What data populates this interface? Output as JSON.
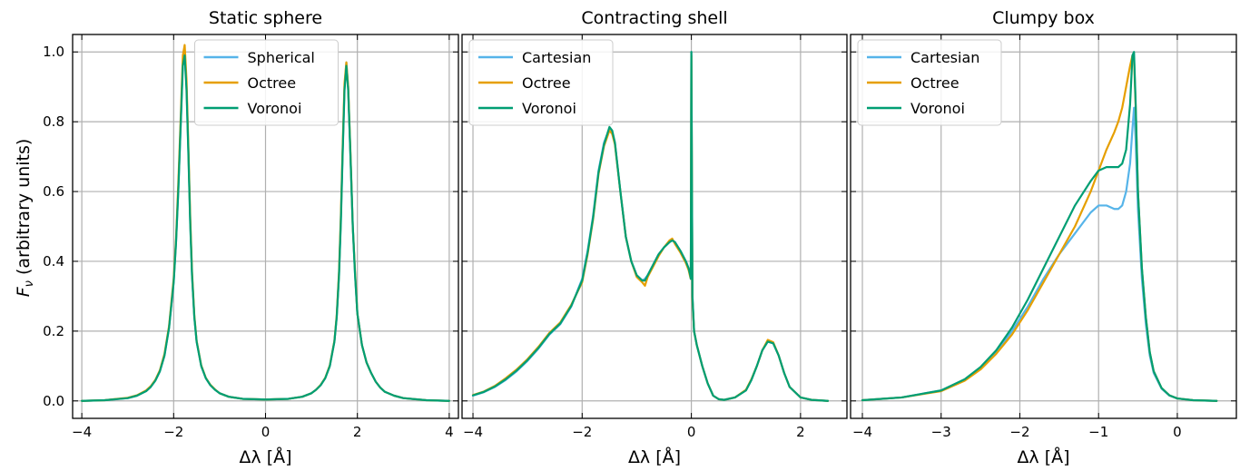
{
  "figure": {
    "ylabel_main": "F",
    "ylabel_sub": "ν",
    "ylabel_rest": " (arbitrary units)",
    "xlabel": "Δλ [Å]"
  },
  "colors": {
    "blue": "#56B4E9",
    "orange": "#E69F00",
    "green": "#009E73"
  },
  "chart_data": [
    {
      "type": "line",
      "title": "Static sphere",
      "xlabel": "Δλ [Å]",
      "ylabel": "Fν (arbitrary units)",
      "xlim": [
        -4.2,
        4.2
      ],
      "ylim": [
        -0.05,
        1.05
      ],
      "xticks": [
        -4,
        -2,
        0,
        2,
        4
      ],
      "xtick_labels": [
        "−4",
        "−2",
        "0",
        "2",
        "4"
      ],
      "yticks": [
        0.0,
        0.2,
        0.4,
        0.6,
        0.8,
        1.0
      ],
      "ytick_labels": [
        "0.0",
        "0.2",
        "0.4",
        "0.6",
        "0.8",
        "1.0"
      ],
      "grid": true,
      "legend": "top-center",
      "series": [
        {
          "name": "Spherical",
          "color": "#56B4E9",
          "x": [
            -4,
            -3.5,
            -3,
            -2.8,
            -2.6,
            -2.5,
            -2.4,
            -2.3,
            -2.2,
            -2.1,
            -2.0,
            -1.95,
            -1.9,
            -1.85,
            -1.8,
            -1.76,
            -1.72,
            -1.68,
            -1.64,
            -1.6,
            -1.55,
            -1.5,
            -1.4,
            -1.3,
            -1.2,
            -1.1,
            -1.0,
            -0.8,
            -0.5,
            0,
            0.5,
            0.8,
            1.0,
            1.1,
            1.2,
            1.3,
            1.4,
            1.5,
            1.55,
            1.6,
            1.64,
            1.68,
            1.72,
            1.76,
            1.8,
            1.85,
            1.9,
            1.95,
            2.0,
            2.1,
            2.2,
            2.3,
            2.4,
            2.5,
            2.6,
            2.8,
            3.0,
            3.5,
            4.0
          ],
          "y": [
            0.0,
            0.002,
            0.008,
            0.015,
            0.028,
            0.04,
            0.058,
            0.085,
            0.13,
            0.21,
            0.34,
            0.45,
            0.6,
            0.78,
            0.97,
            1.0,
            0.9,
            0.72,
            0.52,
            0.36,
            0.24,
            0.17,
            0.1,
            0.065,
            0.045,
            0.032,
            0.022,
            0.012,
            0.006,
            0.004,
            0.006,
            0.012,
            0.022,
            0.032,
            0.045,
            0.065,
            0.1,
            0.17,
            0.24,
            0.36,
            0.52,
            0.72,
            0.9,
            0.97,
            0.9,
            0.7,
            0.5,
            0.36,
            0.25,
            0.16,
            0.11,
            0.08,
            0.055,
            0.038,
            0.026,
            0.015,
            0.008,
            0.002,
            0.0
          ]
        },
        {
          "name": "Octree",
          "color": "#E69F00",
          "x": [
            -4,
            -3.5,
            -3,
            -2.8,
            -2.6,
            -2.5,
            -2.4,
            -2.3,
            -2.2,
            -2.1,
            -2.0,
            -1.95,
            -1.9,
            -1.85,
            -1.8,
            -1.76,
            -1.72,
            -1.68,
            -1.64,
            -1.6,
            -1.55,
            -1.5,
            -1.4,
            -1.3,
            -1.2,
            -1.1,
            -1.0,
            -0.8,
            -0.5,
            0,
            0.5,
            0.8,
            1.0,
            1.1,
            1.2,
            1.3,
            1.4,
            1.5,
            1.55,
            1.6,
            1.64,
            1.68,
            1.72,
            1.76,
            1.8,
            1.85,
            1.9,
            1.95,
            2.0,
            2.1,
            2.2,
            2.3,
            2.4,
            2.5,
            2.6,
            2.8,
            3.0,
            3.5,
            4.0
          ],
          "y": [
            0.0,
            0.002,
            0.009,
            0.016,
            0.03,
            0.042,
            0.06,
            0.088,
            0.135,
            0.215,
            0.35,
            0.46,
            0.62,
            0.8,
            0.99,
            1.02,
            0.92,
            0.73,
            0.53,
            0.37,
            0.245,
            0.172,
            0.102,
            0.066,
            0.046,
            0.033,
            0.022,
            0.012,
            0.006,
            0.004,
            0.006,
            0.012,
            0.022,
            0.032,
            0.046,
            0.066,
            0.102,
            0.172,
            0.245,
            0.37,
            0.53,
            0.73,
            0.91,
            0.97,
            0.9,
            0.71,
            0.5,
            0.37,
            0.25,
            0.16,
            0.11,
            0.08,
            0.055,
            0.038,
            0.026,
            0.015,
            0.008,
            0.002,
            0.0
          ]
        },
        {
          "name": "Voronoi",
          "color": "#009E73",
          "x": [
            -4,
            -3.5,
            -3,
            -2.8,
            -2.6,
            -2.5,
            -2.4,
            -2.3,
            -2.2,
            -2.1,
            -2.0,
            -1.95,
            -1.9,
            -1.85,
            -1.8,
            -1.76,
            -1.72,
            -1.68,
            -1.64,
            -1.6,
            -1.55,
            -1.5,
            -1.4,
            -1.3,
            -1.2,
            -1.1,
            -1.0,
            -0.8,
            -0.5,
            0,
            0.5,
            0.8,
            1.0,
            1.1,
            1.2,
            1.3,
            1.4,
            1.5,
            1.55,
            1.6,
            1.64,
            1.68,
            1.72,
            1.76,
            1.8,
            1.85,
            1.9,
            1.95,
            2.0,
            2.1,
            2.2,
            2.3,
            2.4,
            2.5,
            2.6,
            2.8,
            3.0,
            3.5,
            4.0
          ],
          "y": [
            0.0,
            0.002,
            0.008,
            0.015,
            0.028,
            0.04,
            0.058,
            0.085,
            0.13,
            0.21,
            0.34,
            0.45,
            0.6,
            0.78,
            0.96,
            0.99,
            0.89,
            0.71,
            0.51,
            0.36,
            0.24,
            0.17,
            0.1,
            0.065,
            0.045,
            0.032,
            0.022,
            0.012,
            0.006,
            0.004,
            0.006,
            0.012,
            0.022,
            0.032,
            0.045,
            0.065,
            0.1,
            0.17,
            0.24,
            0.36,
            0.51,
            0.71,
            0.89,
            0.96,
            0.89,
            0.7,
            0.5,
            0.36,
            0.25,
            0.16,
            0.11,
            0.08,
            0.055,
            0.038,
            0.026,
            0.015,
            0.008,
            0.002,
            0.0
          ]
        }
      ]
    },
    {
      "type": "line",
      "title": "Contracting shell",
      "xlabel": "Δλ [Å]",
      "ylabel": "",
      "xlim": [
        -4.2,
        2.85
      ],
      "ylim": [
        -0.05,
        1.05
      ],
      "xticks": [
        -4,
        -2,
        0,
        2
      ],
      "xtick_labels": [
        "−4",
        "−2",
        "0",
        "2"
      ],
      "yticks": [
        0.0,
        0.2,
        0.4,
        0.6,
        0.8,
        1.0
      ],
      "grid": true,
      "legend": "top-left",
      "series": [
        {
          "name": "Cartesian",
          "color": "#56B4E9",
          "x": [
            -4,
            -3.8,
            -3.6,
            -3.4,
            -3.2,
            -3.0,
            -2.8,
            -2.6,
            -2.4,
            -2.2,
            -2.0,
            -1.9,
            -1.8,
            -1.7,
            -1.6,
            -1.5,
            -1.45,
            -1.4,
            -1.3,
            -1.2,
            -1.1,
            -1.0,
            -0.9,
            -0.85,
            -0.8,
            -0.7,
            -0.6,
            -0.5,
            -0.4,
            -0.35,
            -0.3,
            -0.2,
            -0.1,
            -0.05,
            -0.02,
            -0.01,
            0.0,
            0.02,
            0.05,
            0.1,
            0.2,
            0.3,
            0.4,
            0.5,
            0.6,
            0.8,
            1.0,
            1.1,
            1.2,
            1.3,
            1.4,
            1.5,
            1.6,
            1.7,
            1.8,
            2.0,
            2.2,
            2.5
          ],
          "y": [
            0.015,
            0.025,
            0.04,
            0.06,
            0.085,
            0.115,
            0.15,
            0.19,
            0.22,
            0.27,
            0.35,
            0.43,
            0.53,
            0.66,
            0.74,
            0.78,
            0.77,
            0.74,
            0.6,
            0.47,
            0.4,
            0.36,
            0.345,
            0.35,
            0.36,
            0.39,
            0.42,
            0.44,
            0.455,
            0.46,
            0.455,
            0.43,
            0.4,
            0.38,
            0.36,
            0.35,
            1.0,
            0.3,
            0.2,
            0.16,
            0.1,
            0.05,
            0.015,
            0.005,
            0.003,
            0.01,
            0.03,
            0.06,
            0.1,
            0.145,
            0.17,
            0.165,
            0.13,
            0.08,
            0.04,
            0.01,
            0.003,
            0.0
          ]
        },
        {
          "name": "Octree",
          "color": "#E69F00",
          "x": [
            -4,
            -3.8,
            -3.6,
            -3.4,
            -3.2,
            -3.0,
            -2.8,
            -2.6,
            -2.4,
            -2.2,
            -2.0,
            -1.9,
            -1.8,
            -1.7,
            -1.6,
            -1.5,
            -1.45,
            -1.4,
            -1.3,
            -1.2,
            -1.1,
            -1.0,
            -0.9,
            -0.85,
            -0.8,
            -0.7,
            -0.6,
            -0.5,
            -0.4,
            -0.35,
            -0.3,
            -0.2,
            -0.1,
            -0.05,
            -0.02,
            -0.01,
            0.0,
            0.02,
            0.05,
            0.1,
            0.2,
            0.3,
            0.4,
            0.5,
            0.6,
            0.8,
            1.0,
            1.1,
            1.2,
            1.3,
            1.4,
            1.5,
            1.6,
            1.7,
            1.8,
            2.0,
            2.2,
            2.5
          ],
          "y": [
            0.017,
            0.027,
            0.043,
            0.065,
            0.09,
            0.12,
            0.155,
            0.195,
            0.225,
            0.275,
            0.34,
            0.42,
            0.52,
            0.65,
            0.73,
            0.775,
            0.765,
            0.735,
            0.6,
            0.47,
            0.4,
            0.355,
            0.34,
            0.33,
            0.355,
            0.385,
            0.415,
            0.44,
            0.46,
            0.465,
            0.45,
            0.425,
            0.395,
            0.375,
            0.355,
            0.35,
            0.99,
            0.29,
            0.2,
            0.16,
            0.1,
            0.05,
            0.015,
            0.005,
            0.003,
            0.01,
            0.032,
            0.062,
            0.1,
            0.145,
            0.175,
            0.168,
            0.13,
            0.08,
            0.04,
            0.01,
            0.003,
            0.0
          ]
        },
        {
          "name": "Voronoi",
          "color": "#009E73",
          "x": [
            -4,
            -3.8,
            -3.6,
            -3.4,
            -3.2,
            -3.0,
            -2.8,
            -2.6,
            -2.4,
            -2.2,
            -2.0,
            -1.9,
            -1.8,
            -1.7,
            -1.6,
            -1.5,
            -1.45,
            -1.4,
            -1.3,
            -1.2,
            -1.1,
            -1.0,
            -0.9,
            -0.85,
            -0.8,
            -0.7,
            -0.6,
            -0.5,
            -0.4,
            -0.35,
            -0.3,
            -0.2,
            -0.1,
            -0.05,
            -0.02,
            -0.01,
            0.0,
            0.02,
            0.05,
            0.1,
            0.2,
            0.3,
            0.4,
            0.5,
            0.6,
            0.8,
            1.0,
            1.1,
            1.2,
            1.3,
            1.4,
            1.5,
            1.6,
            1.7,
            1.8,
            2.0,
            2.2,
            2.5
          ],
          "y": [
            0.016,
            0.026,
            0.041,
            0.062,
            0.087,
            0.117,
            0.152,
            0.192,
            0.222,
            0.272,
            0.345,
            0.425,
            0.525,
            0.655,
            0.735,
            0.785,
            0.775,
            0.74,
            0.6,
            0.47,
            0.4,
            0.36,
            0.345,
            0.345,
            0.36,
            0.39,
            0.42,
            0.44,
            0.455,
            0.46,
            0.455,
            0.43,
            0.4,
            0.38,
            0.36,
            0.35,
            1.0,
            0.3,
            0.2,
            0.16,
            0.1,
            0.05,
            0.015,
            0.005,
            0.003,
            0.01,
            0.03,
            0.06,
            0.1,
            0.145,
            0.17,
            0.165,
            0.13,
            0.08,
            0.04,
            0.01,
            0.003,
            0.0
          ]
        }
      ]
    },
    {
      "type": "line",
      "title": "Clumpy box",
      "xlabel": "Δλ [Å]",
      "ylabel": "",
      "xlim": [
        -4.15,
        0.75
      ],
      "ylim": [
        -0.05,
        1.05
      ],
      "xticks": [
        -4,
        -3,
        -2,
        -1,
        0
      ],
      "xtick_labels": [
        "−4",
        "−3",
        "−2",
        "−1",
        "0"
      ],
      "yticks": [
        0.0,
        0.2,
        0.4,
        0.6,
        0.8,
        1.0
      ],
      "grid": true,
      "legend": "top-left",
      "series": [
        {
          "name": "Cartesian",
          "color": "#56B4E9",
          "x": [
            -4,
            -3.5,
            -3.0,
            -2.7,
            -2.5,
            -2.3,
            -2.1,
            -1.9,
            -1.7,
            -1.5,
            -1.3,
            -1.1,
            -1.0,
            -0.9,
            -0.8,
            -0.75,
            -0.7,
            -0.65,
            -0.6,
            -0.57,
            -0.55,
            -0.53,
            -0.5,
            -0.45,
            -0.4,
            -0.35,
            -0.3,
            -0.2,
            -0.1,
            0.0,
            0.2,
            0.5
          ],
          "y": [
            0.002,
            0.01,
            0.03,
            0.06,
            0.095,
            0.14,
            0.2,
            0.27,
            0.35,
            0.42,
            0.48,
            0.54,
            0.56,
            0.56,
            0.55,
            0.55,
            0.56,
            0.6,
            0.68,
            0.78,
            0.84,
            0.75,
            0.55,
            0.35,
            0.22,
            0.13,
            0.08,
            0.035,
            0.015,
            0.007,
            0.002,
            0.0
          ]
        },
        {
          "name": "Octree",
          "color": "#E69F00",
          "x": [
            -4,
            -3.5,
            -3.0,
            -2.7,
            -2.5,
            -2.3,
            -2.1,
            -1.9,
            -1.7,
            -1.5,
            -1.3,
            -1.1,
            -1.0,
            -0.9,
            -0.8,
            -0.75,
            -0.7,
            -0.65,
            -0.6,
            -0.57,
            -0.55,
            -0.53,
            -0.5,
            -0.45,
            -0.4,
            -0.35,
            -0.3,
            -0.2,
            -0.1,
            0.0,
            0.2,
            0.5
          ],
          "y": [
            0.002,
            0.01,
            0.028,
            0.058,
            0.09,
            0.135,
            0.19,
            0.26,
            0.34,
            0.42,
            0.5,
            0.6,
            0.66,
            0.72,
            0.77,
            0.8,
            0.84,
            0.9,
            0.96,
            0.99,
            0.98,
            0.85,
            0.6,
            0.38,
            0.24,
            0.14,
            0.085,
            0.037,
            0.016,
            0.007,
            0.002,
            0.0
          ]
        },
        {
          "name": "Voronoi",
          "color": "#009E73",
          "x": [
            -4,
            -3.5,
            -3.0,
            -2.7,
            -2.5,
            -2.3,
            -2.1,
            -1.9,
            -1.7,
            -1.5,
            -1.3,
            -1.1,
            -1.0,
            -0.9,
            -0.8,
            -0.75,
            -0.7,
            -0.65,
            -0.6,
            -0.57,
            -0.55,
            -0.53,
            -0.5,
            -0.45,
            -0.4,
            -0.35,
            -0.3,
            -0.2,
            -0.1,
            0.0,
            0.2,
            0.5
          ],
          "y": [
            0.002,
            0.01,
            0.03,
            0.062,
            0.097,
            0.145,
            0.21,
            0.29,
            0.38,
            0.47,
            0.56,
            0.63,
            0.66,
            0.67,
            0.67,
            0.67,
            0.68,
            0.72,
            0.85,
            0.99,
            1.0,
            0.86,
            0.6,
            0.38,
            0.24,
            0.14,
            0.085,
            0.037,
            0.016,
            0.007,
            0.002,
            0.0
          ]
        }
      ]
    }
  ]
}
